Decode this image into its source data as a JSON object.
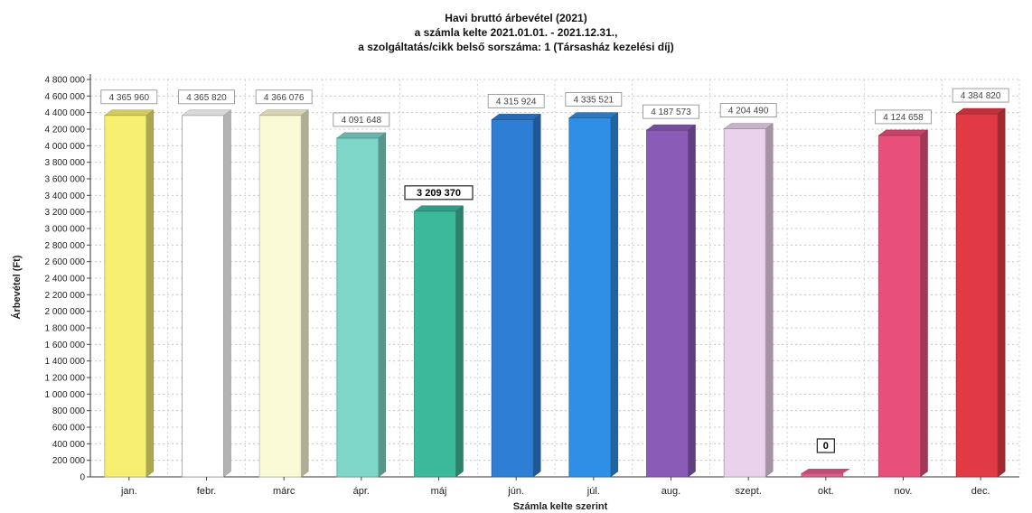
{
  "chart_data": {
    "type": "bar",
    "title_lines": [
      "Havi bruttó árbevétel (2021)",
      "a számla kelte 2021.01.01. - 2021.12.31.,",
      "a szolgáltatás/cikk belső sorszáma: 1 (Társasház kezelési díj)"
    ],
    "xlabel": "Számla kelte szerint",
    "ylabel": "Árbevétel (Ft)",
    "ylim": [
      0,
      4800000
    ],
    "ytick_step": 200000,
    "ytick_labels": [
      "0",
      "200 000",
      "400 000",
      "600 000",
      "800 000",
      "1 000 000",
      "1 200 000",
      "1 400 000",
      "1 600 000",
      "1 800 000",
      "2 000 000",
      "2 200 000",
      "2 400 000",
      "2 600 000",
      "2 800 000",
      "3 000 000",
      "3 200 000",
      "3 400 000",
      "3 600 000",
      "3 800 000",
      "4 000 000",
      "4 200 000",
      "4 400 000",
      "4 600 000",
      "4 800 000"
    ],
    "grid": true,
    "categories": [
      "jan.",
      "febr.",
      "márc",
      "ápr.",
      "máj",
      "jún.",
      "júl.",
      "aug.",
      "szept.",
      "okt.",
      "nov.",
      "dec."
    ],
    "values": [
      4365960,
      4365820,
      4366076,
      4091648,
      3209370,
      4315924,
      4335521,
      4187573,
      4204490,
      0,
      4124658,
      4384820
    ],
    "value_labels": [
      "4 365 960",
      "4 365 820",
      "4 366 076",
      "4 091 648",
      "3 209 370",
      "4 315 924",
      "4 335 521",
      "4 187 573",
      "4 204 490",
      "0",
      "4 124 658",
      "4 384 820"
    ],
    "bar_colors": [
      "#f7ef72",
      "#ffffff",
      "#fafad6",
      "#7dd6c8",
      "#3cb89a",
      "#2e7ed6",
      "#2f8fe6",
      "#8a5cb8",
      "#ead2ec",
      "#e05a8a",
      "#e8507a",
      "#e23a44"
    ]
  }
}
